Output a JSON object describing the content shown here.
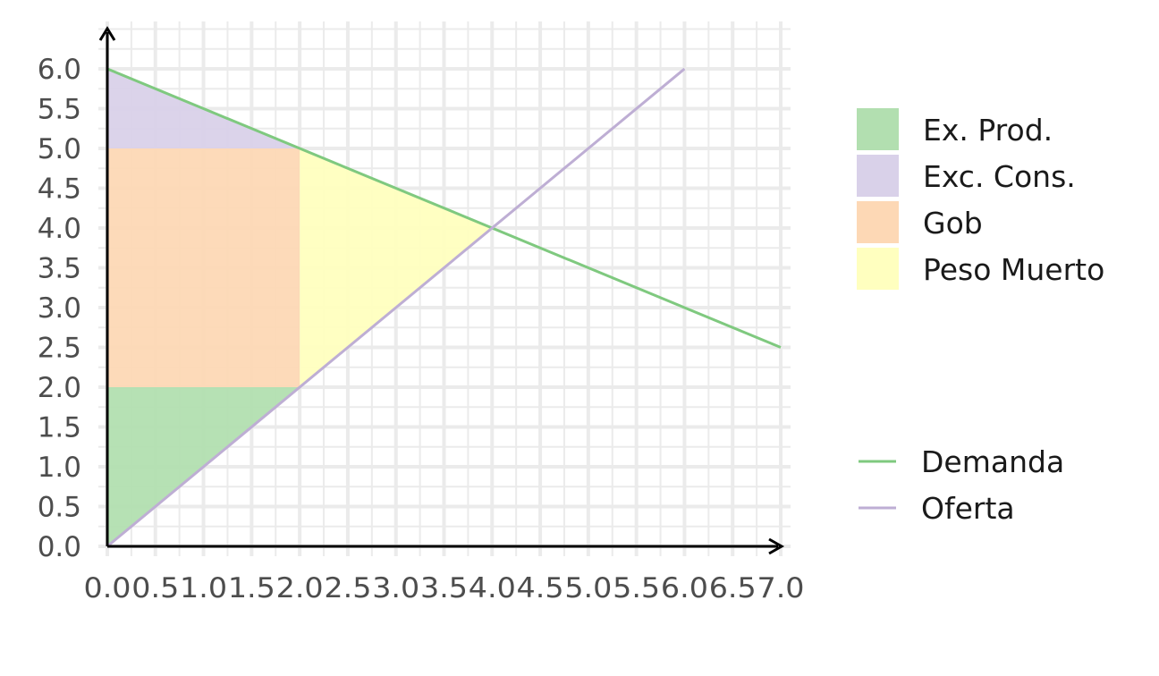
{
  "chart_data": {
    "type": "area",
    "title": "",
    "xlabel": "",
    "ylabel": "",
    "xlim": [
      0,
      7
    ],
    "ylim": [
      0,
      6
    ],
    "x_ticks": [
      "0.0",
      "0.5",
      "1.0",
      "1.5",
      "2.0",
      "2.5",
      "3.0",
      "3.5",
      "4.0",
      "4.5",
      "5.0",
      "5.5",
      "6.0",
      "6.5",
      "7.0"
    ],
    "y_ticks": [
      "0.0",
      "0.5",
      "1.0",
      "1.5",
      "2.0",
      "2.5",
      "3.0",
      "3.5",
      "4.0",
      "4.5",
      "5.0",
      "5.5",
      "6.0"
    ],
    "grid": true,
    "legend_position": "right",
    "areas": [
      {
        "name": "Ex. Prod.",
        "color": "#b2dfb0",
        "points": [
          [
            0,
            0
          ],
          [
            2,
            2
          ],
          [
            0,
            2
          ]
        ]
      },
      {
        "name": "Exc. Cons.",
        "color": "#d9d1e9",
        "points": [
          [
            0,
            6
          ],
          [
            2,
            5
          ],
          [
            0,
            5
          ]
        ]
      },
      {
        "name": "Gob",
        "color": "#fdd8b5",
        "points": [
          [
            0,
            2
          ],
          [
            2,
            2
          ],
          [
            2,
            5
          ],
          [
            0,
            5
          ]
        ]
      },
      {
        "name": "Peso Muerto",
        "color": "#ffffbf",
        "points": [
          [
            2,
            2
          ],
          [
            4,
            4
          ],
          [
            2,
            5
          ]
        ]
      }
    ],
    "series": [
      {
        "name": "Demanda",
        "color": "#7fc97f",
        "x": [
          0,
          7
        ],
        "y": [
          6,
          2.5
        ]
      },
      {
        "name": "Oferta",
        "color": "#beaed4",
        "x": [
          0,
          6
        ],
        "y": [
          0,
          6
        ]
      }
    ]
  }
}
